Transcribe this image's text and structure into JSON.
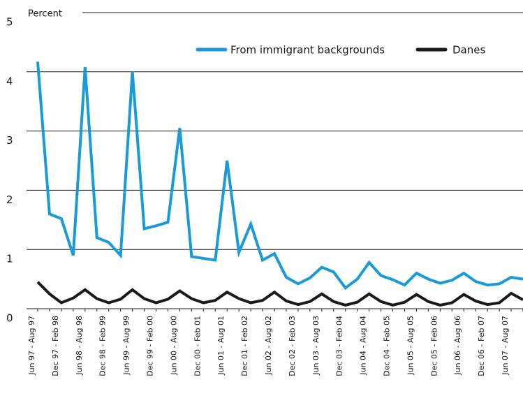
{
  "chart_data": {
    "type": "line",
    "ylabel": "Percent",
    "categories": [
      "Jun 97 - Aug 97",
      null,
      "Dec 97 - Feb 98",
      null,
      "Jun 98 - Aug 98",
      null,
      "Dec 98 - Feb 99",
      null,
      "Jun 99 - Aug 99",
      null,
      "Dec 99 - Feb 00",
      null,
      "Jun 00 - Aug 00",
      null,
      "Dec 00 - Feb 01",
      null,
      "Jun 01 - Aug 01",
      null,
      "Dec 01 - Feb 02",
      null,
      "Jun 02 - Aug 02",
      null,
      "Dec 02 - Feb 03",
      null,
      "Jun 03 - Aug 03",
      null,
      "Dec 03 - Feb 04",
      null,
      "Jun 04 - Aug 04",
      null,
      "Dec 04 - Feb 05",
      null,
      "Jun 05 - Aug 05",
      null,
      "Dec 05 - Feb 06",
      null,
      "Jun 06 - Aug 06",
      null,
      "Dec 06 - Feb 07",
      null,
      "Jun 07 - Aug 07",
      null
    ],
    "series": [
      {
        "name": "From immigrant backgrounds",
        "color": "#1a9ad6",
        "values": [
          4.17,
          1.6,
          1.52,
          0.9,
          4.08,
          1.2,
          1.12,
          0.9,
          4.0,
          1.35,
          1.4,
          1.46,
          3.05,
          0.88,
          0.85,
          0.82,
          2.5,
          0.95,
          1.43,
          0.82,
          0.93,
          0.53,
          0.42,
          0.52,
          0.7,
          0.62,
          0.35,
          0.5,
          0.78,
          0.56,
          0.49,
          0.4,
          0.6,
          0.5,
          0.43,
          0.48,
          0.6,
          0.46,
          0.4,
          0.42,
          0.53,
          0.5
        ]
      },
      {
        "name": "Danes",
        "color": "#1a1a1a",
        "values": [
          0.45,
          0.25,
          0.1,
          0.18,
          0.32,
          0.17,
          0.1,
          0.16,
          0.32,
          0.17,
          0.1,
          0.16,
          0.3,
          0.17,
          0.1,
          0.14,
          0.28,
          0.17,
          0.1,
          0.14,
          0.28,
          0.13,
          0.07,
          0.12,
          0.25,
          0.12,
          0.06,
          0.11,
          0.25,
          0.12,
          0.06,
          0.11,
          0.24,
          0.12,
          0.06,
          0.1,
          0.24,
          0.13,
          0.07,
          0.1,
          0.26,
          0.15
        ]
      }
    ],
    "ylim": [
      0,
      5
    ],
    "yticks": [
      0,
      1,
      2,
      3,
      4,
      5
    ],
    "grid": true,
    "legend": "top-right"
  }
}
